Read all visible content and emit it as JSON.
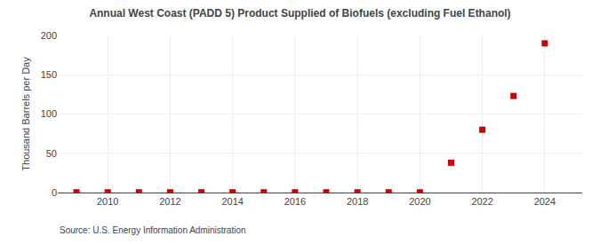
{
  "chart_data": {
    "type": "scatter",
    "title": "Annual West Coast (PADD 5) Product Supplied of Biofuels (excluding Fuel Ethanol)",
    "ylabel": "Thousand Barrels per Day",
    "annotations": [
      "Source: U.S. Energy Information Administration"
    ],
    "x": [
      2009,
      2010,
      2011,
      2012,
      2013,
      2014,
      2015,
      2016,
      2017,
      2018,
      2019,
      2020,
      2021,
      2022,
      2023,
      2024
    ],
    "values": [
      0.3,
      0.3,
      0.3,
      0.3,
      0.3,
      0.3,
      0.3,
      0.3,
      0.3,
      0.3,
      0.3,
      0.3,
      38,
      80,
      123,
      190
    ],
    "color": "#cc0000",
    "marker": "square",
    "xlim": [
      2008.4,
      2025.2
    ],
    "xticks": [
      2010,
      2012,
      2014,
      2016,
      2018,
      2020,
      2022,
      2024
    ],
    "ylim": [
      0,
      200
    ],
    "yticks": [
      0,
      50,
      100,
      150,
      200
    ],
    "grid": true
  }
}
